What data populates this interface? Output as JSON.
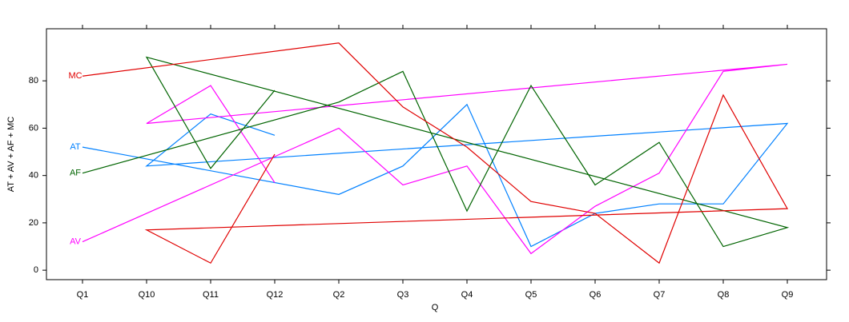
{
  "chart_data": {
    "type": "line",
    "xlabel": "Q",
    "ylabel": "AT + AV + AF + MC",
    "categories": [
      "Q1",
      "Q10",
      "Q11",
      "Q12",
      "Q2",
      "Q3",
      "Q4",
      "Q5",
      "Q6",
      "Q7",
      "Q8",
      "Q9"
    ],
    "x": [
      "Q1",
      "Q2",
      "Q3",
      "Q4",
      "Q5",
      "Q6",
      "Q7",
      "Q8",
      "Q9",
      "Q10",
      "Q11",
      "Q12"
    ],
    "series": [
      {
        "name": "AT",
        "color": "#0080ff",
        "values": [
          52,
          32,
          44,
          70,
          10,
          24,
          28,
          28,
          62,
          44,
          66,
          57
        ]
      },
      {
        "name": "AV",
        "color": "#ff00ff",
        "values": [
          12,
          60,
          36,
          44,
          7,
          27,
          41,
          84,
          87,
          62,
          78,
          37
        ]
      },
      {
        "name": "AF",
        "color": "#006400",
        "values": [
          41,
          71,
          84,
          25,
          78,
          36,
          54,
          10,
          18,
          90,
          43,
          76
        ]
      },
      {
        "name": "MC",
        "color": "#e00000",
        "values": [
          82,
          96,
          69,
          52,
          29,
          24,
          3,
          74,
          26,
          17,
          3,
          49
        ]
      }
    ],
    "ylim": [
      -4,
      102
    ],
    "yticks": [
      0,
      20,
      40,
      60,
      80
    ]
  }
}
